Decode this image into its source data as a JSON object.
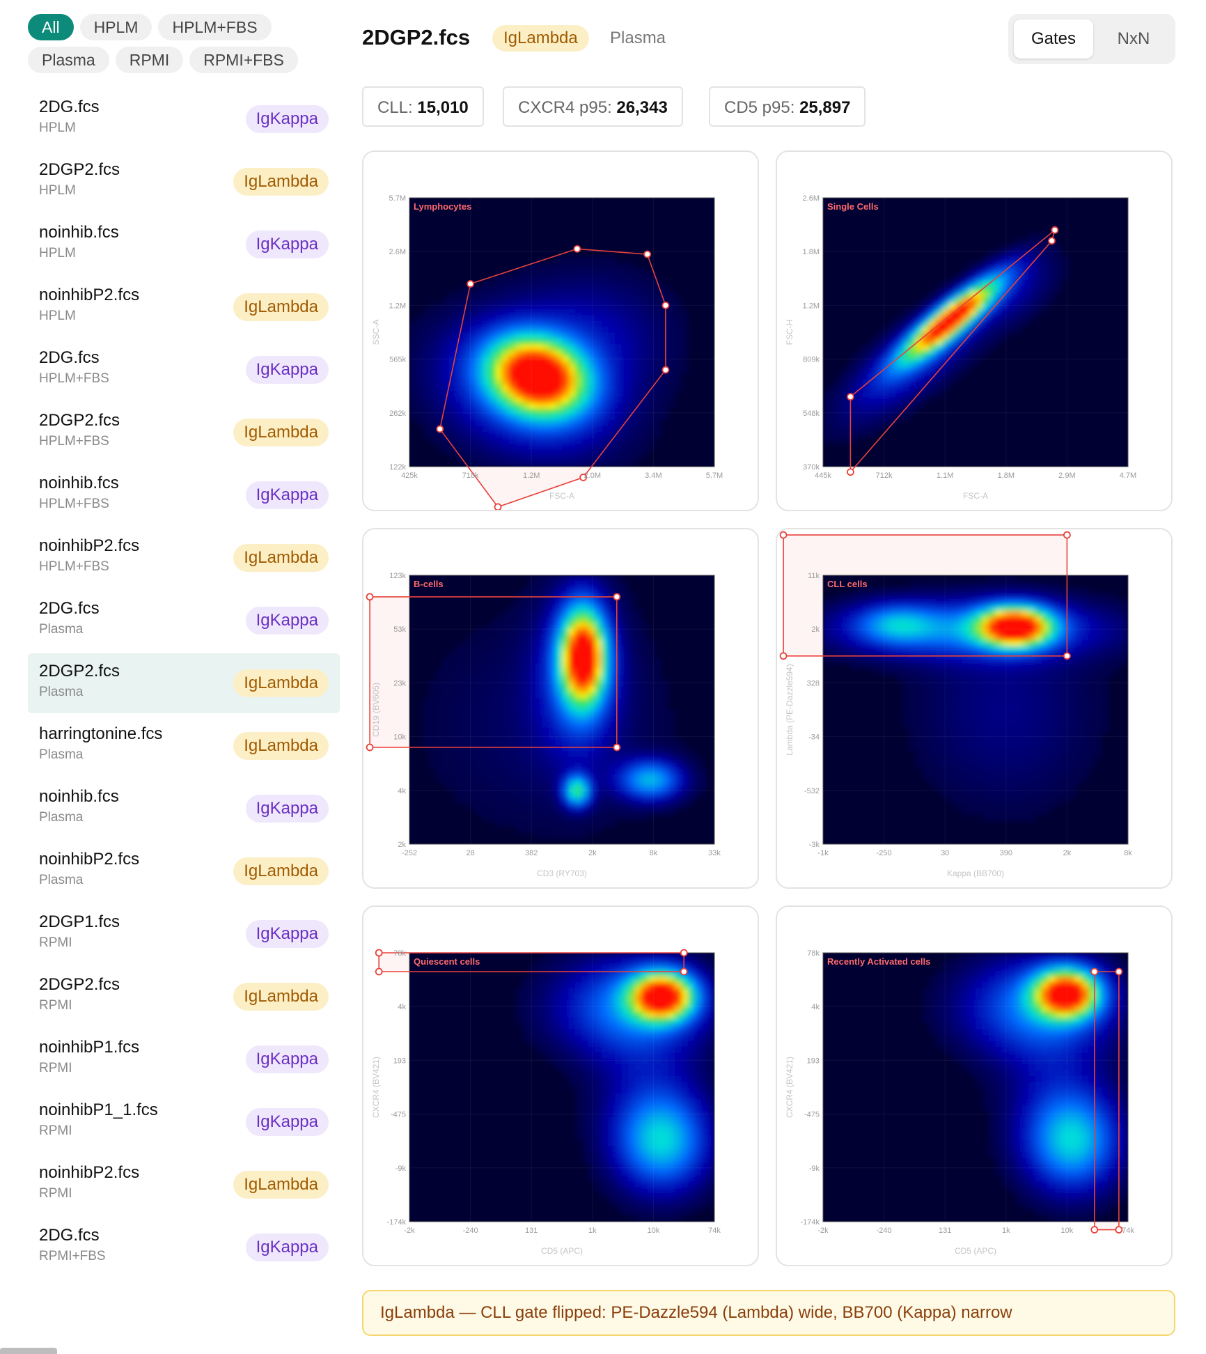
{
  "filters": {
    "chips": [
      "All",
      "HPLM",
      "HPLM+FBS",
      "Plasma",
      "RPMI",
      "RPMI+FBS"
    ],
    "active": "All"
  },
  "files": [
    {
      "name": "2DG.fcs",
      "media": "HPLM",
      "badge": "IgKappa"
    },
    {
      "name": "2DGP2.fcs",
      "media": "HPLM",
      "badge": "IgLambda"
    },
    {
      "name": "noinhib.fcs",
      "media": "HPLM",
      "badge": "IgKappa"
    },
    {
      "name": "noinhibP2.fcs",
      "media": "HPLM",
      "badge": "IgLambda"
    },
    {
      "name": "2DG.fcs",
      "media": "HPLM+FBS",
      "badge": "IgKappa"
    },
    {
      "name": "2DGP2.fcs",
      "media": "HPLM+FBS",
      "badge": "IgLambda"
    },
    {
      "name": "noinhib.fcs",
      "media": "HPLM+FBS",
      "badge": "IgKappa"
    },
    {
      "name": "noinhibP2.fcs",
      "media": "HPLM+FBS",
      "badge": "IgLambda"
    },
    {
      "name": "2DG.fcs",
      "media": "Plasma",
      "badge": "IgKappa"
    },
    {
      "name": "2DGP2.fcs",
      "media": "Plasma",
      "badge": "IgLambda",
      "selected": true
    },
    {
      "name": "harringtonine.fcs",
      "media": "Plasma",
      "badge": "IgLambda"
    },
    {
      "name": "noinhib.fcs",
      "media": "Plasma",
      "badge": "IgKappa"
    },
    {
      "name": "noinhibP2.fcs",
      "media": "Plasma",
      "badge": "IgLambda"
    },
    {
      "name": "2DGP1.fcs",
      "media": "RPMI",
      "badge": "IgKappa"
    },
    {
      "name": "2DGP2.fcs",
      "media": "RPMI",
      "badge": "IgLambda"
    },
    {
      "name": "noinhibP1.fcs",
      "media": "RPMI",
      "badge": "IgKappa"
    },
    {
      "name": "noinhibP1_1.fcs",
      "media": "RPMI",
      "badge": "IgKappa"
    },
    {
      "name": "noinhibP2.fcs",
      "media": "RPMI",
      "badge": "IgLambda"
    },
    {
      "name": "2DG.fcs",
      "media": "RPMI+FBS",
      "badge": "IgKappa"
    }
  ],
  "header": {
    "title": "2DGP2.fcs",
    "badge": "IgLambda",
    "media": "Plasma",
    "views": [
      "Gates",
      "NxN"
    ],
    "active_view": "Gates"
  },
  "stats": [
    {
      "label": "CLL: ",
      "value": "15,010"
    },
    {
      "label": "CXCR4 p95: ",
      "value": "26,343"
    },
    {
      "label": "CD5 p95: ",
      "value": "25,897"
    }
  ],
  "colors": {
    "accent": "#0c8a7a",
    "gate": "#e8413b",
    "plot_bg": "#000033",
    "kappa_badge": "#efe7fb",
    "lambda_badge": "#fcefc6"
  },
  "chart_data": [
    {
      "type": "heatmap",
      "gate": "Lymphocytes",
      "xlabel": "FSC-A",
      "ylabel": "SSC-A",
      "xticks": [
        "425k",
        "718k",
        "1.2M",
        "2.0M",
        "3.4M",
        "5.7M"
      ],
      "yticks": [
        "122k",
        "262k",
        "565k",
        "1.2M",
        "2.6M",
        "5.7M"
      ],
      "gate_vertices": [
        [
          0.1,
          0.14
        ],
        [
          0.2,
          0.68
        ],
        [
          0.55,
          0.81
        ],
        [
          0.78,
          0.79
        ],
        [
          0.84,
          0.6
        ],
        [
          0.84,
          0.36
        ],
        [
          0.57,
          -0.04
        ],
        [
          0.29,
          -0.15
        ],
        [
          0.1,
          0.14
        ]
      ],
      "gate_shape": "polygon",
      "clusters": [
        {
          "x": 0.42,
          "y": 0.34,
          "sx": 0.11,
          "sy": 0.09,
          "w": 1.0,
          "rot": -0.5
        },
        {
          "x": 0.38,
          "y": 0.28,
          "sx": 0.2,
          "sy": 0.15,
          "w": 0.25,
          "rot": -0.5
        },
        {
          "x": 0.58,
          "y": 0.48,
          "sx": 0.18,
          "sy": 0.16,
          "w": 0.12,
          "rot": 0
        }
      ]
    },
    {
      "type": "heatmap",
      "gate": "Single Cells",
      "xlabel": "FSC-A",
      "ylabel": "FSC-H",
      "xticks": [
        "445k",
        "712k",
        "1.1M",
        "1.8M",
        "2.9M",
        "4.7M"
      ],
      "yticks": [
        "370k",
        "548k",
        "809k",
        "1.2M",
        "1.8M",
        "2.6M"
      ],
      "gate_vertices": [
        [
          0.09,
          0.26
        ],
        [
          0.76,
          0.88
        ],
        [
          0.75,
          0.84
        ],
        [
          0.09,
          -0.02
        ],
        [
          0.09,
          0.26
        ]
      ],
      "gate_shape": "polygon",
      "clusters": [
        {
          "x": 0.42,
          "y": 0.55,
          "sx": 0.14,
          "sy": 0.035,
          "w": 1.0,
          "rot": 0.76
        },
        {
          "x": 0.3,
          "y": 0.4,
          "sx": 0.2,
          "sy": 0.07,
          "w": 0.2,
          "rot": 0.76
        },
        {
          "x": 0.62,
          "y": 0.66,
          "sx": 0.12,
          "sy": 0.07,
          "w": 0.1,
          "rot": 0.76
        }
      ]
    },
    {
      "type": "heatmap",
      "gate": "B-cells",
      "xlabel": "CD3 (RY703)",
      "ylabel": "CD19 (BV605)",
      "xticks": [
        "-252",
        "28",
        "382",
        "2k",
        "8k",
        "33k"
      ],
      "yticks": [
        "2k",
        "4k",
        "10k",
        "23k",
        "53k",
        "123k"
      ],
      "gate_vertices": [
        [
          -0.13,
          0.92
        ],
        [
          0.68,
          0.92
        ],
        [
          0.68,
          0.36
        ],
        [
          -0.13,
          0.36
        ],
        [
          -0.13,
          0.92
        ]
      ],
      "gate_shape": "rect",
      "clusters": [
        {
          "x": 0.57,
          "y": 0.7,
          "sx": 0.05,
          "sy": 0.12,
          "w": 1.0,
          "rot": 0
        },
        {
          "x": 0.55,
          "y": 0.62,
          "sx": 0.09,
          "sy": 0.2,
          "w": 0.22,
          "rot": 0
        },
        {
          "x": 0.55,
          "y": 0.2,
          "sx": 0.03,
          "sy": 0.04,
          "w": 0.5,
          "rot": 0
        },
        {
          "x": 0.79,
          "y": 0.24,
          "sx": 0.07,
          "sy": 0.05,
          "w": 0.38,
          "rot": 0
        },
        {
          "x": 0.45,
          "y": 0.45,
          "sx": 0.3,
          "sy": 0.3,
          "w": 0.05,
          "rot": 0
        }
      ]
    },
    {
      "type": "heatmap",
      "gate": "CLL cells",
      "xlabel": "Kappa (BB700)",
      "ylabel": "Lambda (PE-Dazzle594)",
      "xticks": [
        "-1k",
        "-250",
        "30",
        "390",
        "2k",
        "8k"
      ],
      "yticks": [
        "-3k",
        "-532",
        "-34",
        "328",
        "2k",
        "11k"
      ],
      "gate_vertices": [
        [
          -0.13,
          1.15
        ],
        [
          0.8,
          1.15
        ],
        [
          0.8,
          0.7
        ],
        [
          -0.13,
          0.7
        ],
        [
          -0.13,
          1.15
        ]
      ],
      "gate_shape": "rect",
      "clusters": [
        {
          "x": 0.63,
          "y": 0.81,
          "sx": 0.08,
          "sy": 0.05,
          "w": 1.0,
          "rot": 0
        },
        {
          "x": 0.48,
          "y": 0.8,
          "sx": 0.28,
          "sy": 0.07,
          "w": 0.3,
          "rot": 0
        },
        {
          "x": 0.24,
          "y": 0.82,
          "sx": 0.09,
          "sy": 0.05,
          "w": 0.25,
          "rot": 0
        },
        {
          "x": 0.6,
          "y": 0.5,
          "sx": 0.2,
          "sy": 0.25,
          "w": 0.08,
          "rot": 0
        }
      ]
    },
    {
      "type": "heatmap",
      "gate": "Quiescent cells",
      "xlabel": "CD5 (APC)",
      "ylabel": "CXCR4 (BV421)",
      "xticks": [
        "-2k",
        "-240",
        "131",
        "1k",
        "10k",
        "74k"
      ],
      "yticks": [
        "-174k",
        "-9k",
        "-475",
        "193",
        "4k",
        "78k"
      ],
      "gate_vertices": [
        [
          -0.1,
          0.93
        ],
        [
          0.9,
          0.93
        ],
        [
          0.9,
          1.0
        ],
        [
          -0.1,
          1.0
        ],
        [
          -0.1,
          0.93
        ]
      ],
      "gate_shape": "rect",
      "clusters": [
        {
          "x": 0.83,
          "y": 0.84,
          "sx": 0.07,
          "sy": 0.06,
          "w": 1.0,
          "rot": 0
        },
        {
          "x": 0.72,
          "y": 0.8,
          "sx": 0.16,
          "sy": 0.12,
          "w": 0.3,
          "rot": 0
        },
        {
          "x": 0.83,
          "y": 0.3,
          "sx": 0.1,
          "sy": 0.12,
          "w": 0.4,
          "rot": 0
        },
        {
          "x": 0.78,
          "y": 0.5,
          "sx": 0.12,
          "sy": 0.2,
          "w": 0.1,
          "rot": 0
        }
      ]
    },
    {
      "type": "heatmap",
      "gate": "Recently Activated cells",
      "xlabel": "CD5 (APC)",
      "ylabel": "CXCR4 (BV421)",
      "xticks": [
        "-2k",
        "-240",
        "131",
        "1k",
        "10k",
        "74k"
      ],
      "yticks": [
        "-174k",
        "-9k",
        "-475",
        "193",
        "4k",
        "78k"
      ],
      "gate_vertices": [
        [
          0.89,
          0.93
        ],
        [
          0.97,
          0.93
        ],
        [
          0.97,
          -0.03
        ],
        [
          0.89,
          -0.03
        ],
        [
          0.89,
          0.93
        ]
      ],
      "gate_shape": "rect",
      "clusters": [
        {
          "x": 0.8,
          "y": 0.85,
          "sx": 0.07,
          "sy": 0.06,
          "w": 1.0,
          "rot": 0
        },
        {
          "x": 0.7,
          "y": 0.8,
          "sx": 0.16,
          "sy": 0.12,
          "w": 0.3,
          "rot": 0
        },
        {
          "x": 0.82,
          "y": 0.3,
          "sx": 0.1,
          "sy": 0.12,
          "w": 0.4,
          "rot": 0
        },
        {
          "x": 0.76,
          "y": 0.5,
          "sx": 0.12,
          "sy": 0.2,
          "w": 0.1,
          "rot": 0
        }
      ]
    }
  ],
  "note": "IgLambda — CLL gate flipped: PE-Dazzle594 (Lambda) wide, BB700 (Kappa) narrow"
}
